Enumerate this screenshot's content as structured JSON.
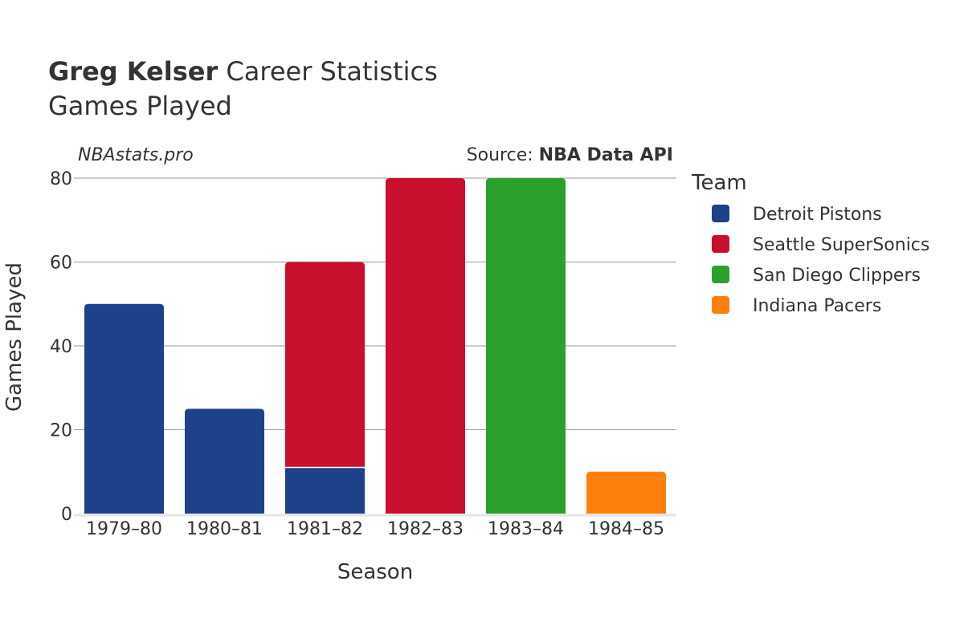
{
  "header": {
    "player_name": "Greg Kelser",
    "title_suffix": "Career Statistics",
    "subtitle": "Games Played",
    "site": "NBAstats.pro",
    "source_label": "Source: ",
    "source_name": "NBA Data API"
  },
  "chart_data": {
    "type": "bar",
    "stacked": true,
    "title": "Greg Kelser Career Statistics — Games Played",
    "xlabel": "Season",
    "ylabel": "Games Played",
    "ylim": [
      0,
      80
    ],
    "yticks": [
      0,
      20,
      40,
      60,
      80
    ],
    "grid": true,
    "legend_title": "Team",
    "legend_position": "right",
    "categories": [
      "1979–80",
      "1980–81",
      "1981–82",
      "1982–83",
      "1983–84",
      "1984–85"
    ],
    "series": [
      {
        "name": "Detroit Pistons",
        "color": "#1d428a",
        "values": [
          50,
          25,
          11,
          0,
          0,
          0
        ]
      },
      {
        "name": "Seattle SuperSonics",
        "color": "#c8102e",
        "values": [
          0,
          0,
          49,
          80,
          0,
          0
        ]
      },
      {
        "name": "San Diego Clippers",
        "color": "#2ca02c",
        "values": [
          0,
          0,
          0,
          0,
          80,
          0
        ]
      },
      {
        "name": "Indiana Pacers",
        "color": "#ff7f0e",
        "values": [
          0,
          0,
          0,
          0,
          0,
          10
        ]
      }
    ]
  }
}
